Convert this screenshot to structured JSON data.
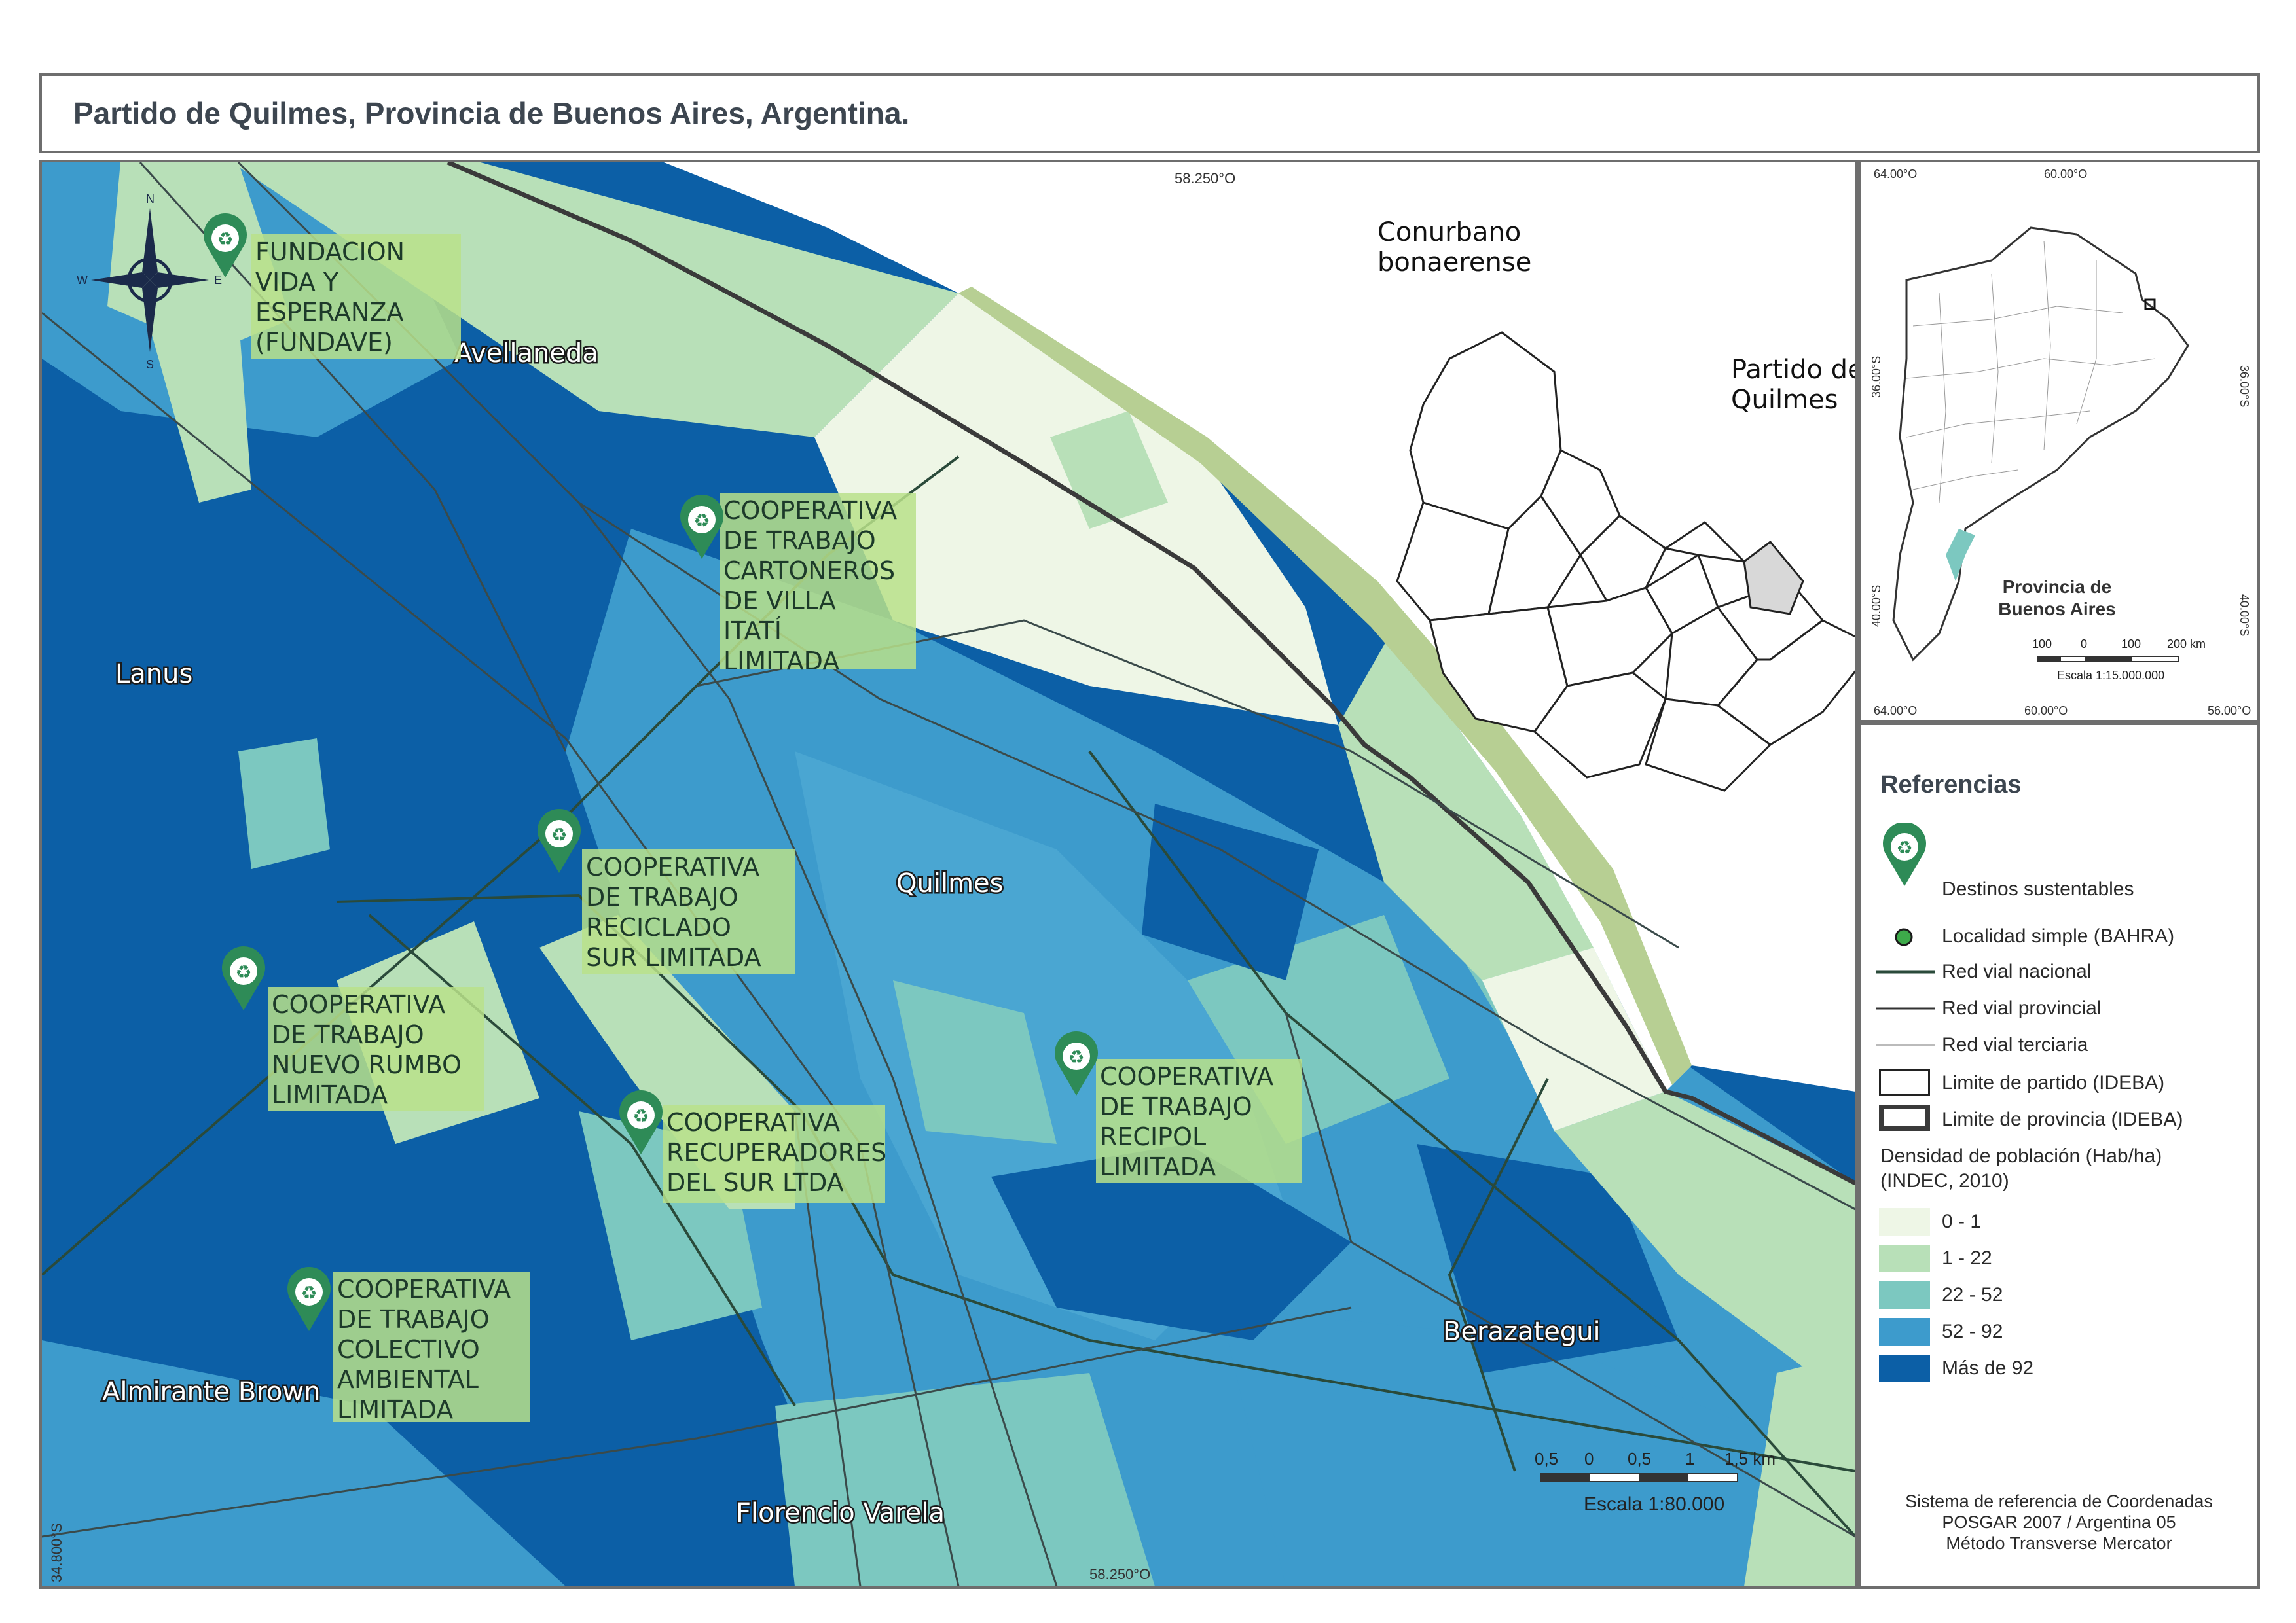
{
  "title": "Partido de Quilmes, Provincia de Buenos Aires, Argentina.",
  "map": {
    "grid_labels": {
      "top": "58.250°O",
      "bottom": "58.250°O",
      "left": "34.800°S"
    },
    "north_arrow": {
      "n": "N",
      "s": "S",
      "e": "E",
      "w": "W"
    },
    "locality_labels": [
      "Avellaneda",
      "Lanus",
      "Quilmes",
      "Almirante Brown",
      "Berazategui",
      "Florencio Varela"
    ],
    "inset_labels": {
      "region": "Conurbano bonaerense",
      "partido": "Partido de Quilmes"
    },
    "destinations": [
      {
        "name": "FUNDACION VIDA Y ESPERANZA (FUNDAVE)",
        "lines": [
          "FUNDACION",
          "VIDA Y",
          "ESPERANZA",
          "(FUNDAVE)"
        ]
      },
      {
        "name": "COOPERATIVA DE TRABAJO CARTONEROS DE VILLA ITATÍ LIMITADA",
        "lines": [
          "COOPERATIVA",
          "DE TRABAJO",
          "CARTONEROS",
          "DE VILLA",
          "ITATÍ",
          "LIMITADA"
        ]
      },
      {
        "name": "COOPERATIVA DE TRABAJO RECICLADO SUR LIMITADA",
        "lines": [
          "COOPERATIVA",
          "DE TRABAJO",
          "RECICLADO",
          "SUR LIMITADA"
        ]
      },
      {
        "name": "COOPERATIVA DE TRABAJO NUEVO RUMBO LIMITADA",
        "lines": [
          "COOPERATIVA",
          "DE TRABAJO",
          "NUEVO RUMBO",
          "LIMITADA"
        ]
      },
      {
        "name": "COOPERATIVA DE TRABAJO RECIPOL LIMITADA",
        "lines": [
          "COOPERATIVA",
          "DE TRABAJO",
          "RECIPOL",
          "LIMITADA"
        ]
      },
      {
        "name": "COOPERATIVA RECUPERADORES DEL SUR LTDA",
        "lines": [
          "COOPERATIVA",
          "RECUPERADORES",
          "DEL SUR LTDA"
        ]
      },
      {
        "name": "COOPERATIVA DE TRABAJO COLECTIVO AMBIENTAL LIMITADA",
        "lines": [
          "COOPERATIVA",
          "DE TRABAJO",
          "COLECTIVO",
          "AMBIENTAL",
          "LIMITADA"
        ]
      }
    ],
    "scale": {
      "ticks": [
        "0,5",
        "0",
        "0,5",
        "1",
        "1,5 km"
      ],
      "text": "Escala 1:80.000"
    }
  },
  "inset": {
    "grid_labels": {
      "top_left": "64.00°O",
      "top_mid": "60.00°O",
      "bottom_left": "64.00°O",
      "bottom_mid": "60.00°O",
      "bottom_right": "56.00°O",
      "left_1": "36.00°S",
      "left_2": "40.00°S",
      "right_1": "36.00°S",
      "right_2": "40.00°S"
    },
    "name_line1": "Provincia de",
    "name_line2": "Buenos Aires",
    "scale_ticks": [
      "100",
      "0",
      "100",
      "200 km"
    ],
    "scale_text": "Escala 1:15.000.000"
  },
  "legend": {
    "title": "Referencias",
    "items": {
      "destinos": "Destinos sustentables",
      "localidad": "Localidad simple (BAHRA)",
      "red_nacional": "Red vial nacional",
      "red_provincial": "Red vial provincial",
      "red_terciaria": "Red vial terciaria",
      "limite_partido": "Limite de partido (IDEBA)",
      "limite_provincia": "Limite de provincia (IDEBA)"
    },
    "density_title_1": "Densidad de población (Hab/ha)",
    "density_title_2": "(INDEC, 2010)",
    "density_classes": [
      {
        "label": "0 - 1",
        "color": "#eef6e6"
      },
      {
        "label": "1 - 22",
        "color": "#b8e0b8"
      },
      {
        "label": "22 - 52",
        "color": "#7cc8c0"
      },
      {
        "label": "52 - 92",
        "color": "#3d9bcc"
      },
      {
        "label": "Más de 92",
        "color": "#0c5fa6"
      }
    ],
    "crs_1": "Sistema de referencia de Coordenadas",
    "crs_2": "POSGAR 2007 / Argentina 05",
    "crs_3": "Método Transverse Mercator"
  },
  "colors": {
    "marker": "#2e8b57",
    "label_box": "#b9e08a",
    "coast": "#b7cf93",
    "road": "#2a4a3a"
  }
}
